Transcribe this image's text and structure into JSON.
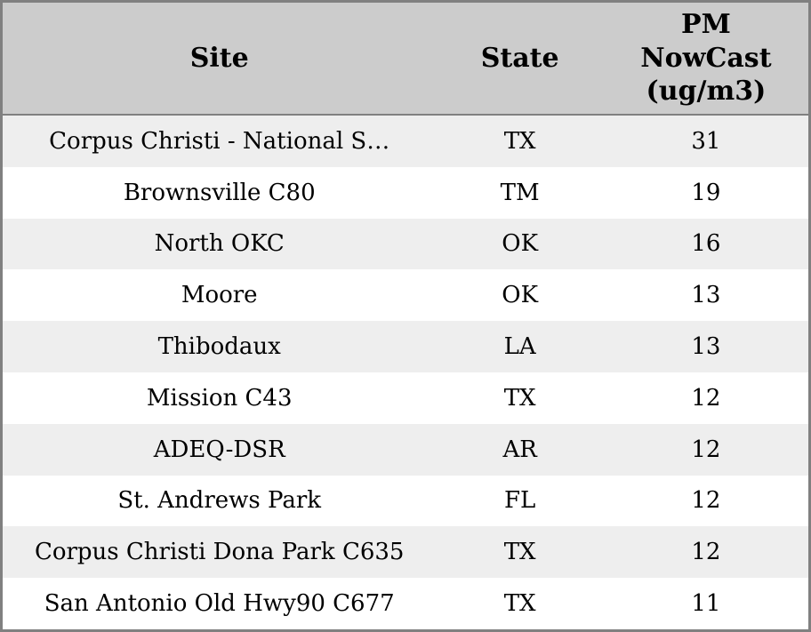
{
  "chart_data": {
    "type": "table",
    "title": "",
    "columns": [
      "Site",
      "State",
      "PM NowCast (ug/m3)"
    ],
    "rows": [
      [
        "Corpus Christi - National S…",
        "TX",
        31
      ],
      [
        "Brownsville C80",
        "TM",
        19
      ],
      [
        "North OKC",
        "OK",
        16
      ],
      [
        "Moore",
        "OK",
        13
      ],
      [
        "Thibodaux",
        "LA",
        13
      ],
      [
        "Mission C43",
        "TX",
        12
      ],
      [
        "ADEQ-DSR",
        "AR",
        12
      ],
      [
        "St. Andrews Park",
        "FL",
        12
      ],
      [
        "Corpus Christi Dona Park C635",
        "TX",
        12
      ],
      [
        "San Antonio Old Hwy90 C677",
        "TX",
        11
      ]
    ],
    "layout": {
      "header_background": "#cccccc",
      "row_background": "#ffffff",
      "row_alt_background": "#eeeeee",
      "border_color": "#808080",
      "text_color": "#000000",
      "grid": "alternating-row-shading"
    }
  }
}
